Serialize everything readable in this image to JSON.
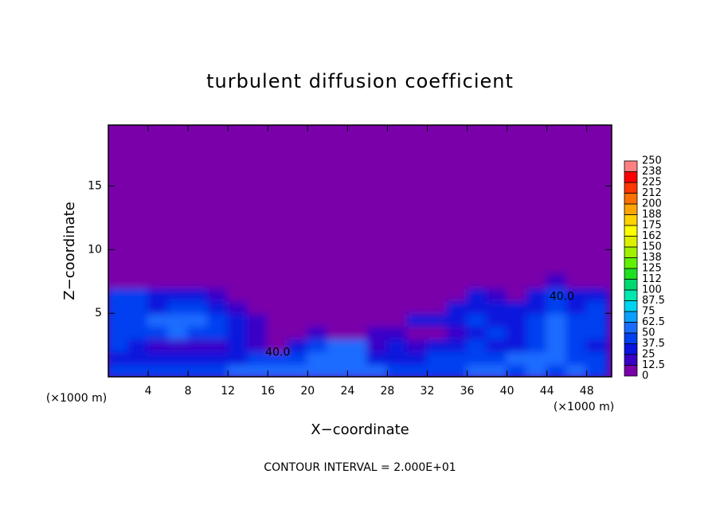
{
  "chart_data": {
    "type": "heatmap",
    "title": "turbulent diffusion coefficient",
    "x_label": "X−coordinate",
    "y_label": "Z−coordinate",
    "x_unit": "(×1000 m)",
    "x_unit_right": "(×1000 m)",
    "footnote": "CONTOUR INTERVAL = 2.000E+01",
    "annotations": [
      {
        "text": "40.0",
        "x": 17,
        "z": 1.9
      },
      {
        "text": "40.0",
        "x": 45.5,
        "z": 6.3
      }
    ],
    "xlim": [
      0,
      50.5
    ],
    "ylim": [
      0,
      19.8
    ],
    "xticks": [
      4,
      8,
      12,
      16,
      20,
      24,
      28,
      32,
      36,
      40,
      44,
      48
    ],
    "yticks": [
      5,
      10,
      15
    ],
    "x": [
      1,
      3,
      5,
      7,
      9,
      11,
      13,
      15,
      17,
      19,
      21,
      23,
      25,
      27,
      29,
      31,
      33,
      35,
      37,
      39,
      41,
      43,
      45,
      47,
      49
    ],
    "z": [
      0.5,
      1.5,
      2.5,
      3.5,
      4.5,
      5.5,
      6.5,
      7.5
    ],
    "values": [
      [
        40,
        40,
        45,
        45,
        45,
        45,
        50,
        55,
        50,
        55,
        55,
        60,
        55,
        50,
        45,
        45,
        40,
        45,
        50,
        50,
        45,
        50,
        45,
        50,
        45
      ],
      [
        35,
        30,
        30,
        30,
        25,
        25,
        30,
        45,
        40,
        45,
        55,
        60,
        60,
        35,
        30,
        35,
        40,
        45,
        40,
        45,
        50,
        55,
        50,
        45,
        40
      ],
      [
        40,
        25,
        15,
        20,
        20,
        20,
        25,
        15,
        10,
        30,
        40,
        55,
        50,
        20,
        30,
        20,
        30,
        35,
        40,
        30,
        30,
        40,
        55,
        40,
        35
      ],
      [
        40,
        40,
        45,
        50,
        45,
        40,
        35,
        20,
        10,
        10,
        15,
        10,
        10,
        15,
        20,
        10,
        10,
        20,
        35,
        40,
        35,
        40,
        55,
        40,
        40
      ],
      [
        40,
        45,
        50,
        55,
        50,
        45,
        35,
        15,
        5,
        5,
        5,
        5,
        5,
        5,
        10,
        25,
        30,
        35,
        40,
        35,
        35,
        40,
        50,
        40,
        40
      ],
      [
        45,
        40,
        35,
        45,
        40,
        30,
        20,
        10,
        5,
        5,
        5,
        5,
        5,
        5,
        5,
        5,
        10,
        30,
        35,
        30,
        30,
        35,
        45,
        35,
        40
      ],
      [
        40,
        45,
        35,
        30,
        25,
        15,
        5,
        5,
        5,
        5,
        5,
        5,
        5,
        5,
        5,
        5,
        5,
        10,
        25,
        20,
        5,
        25,
        40,
        30,
        35
      ],
      [
        5,
        5,
        5,
        5,
        5,
        5,
        5,
        5,
        5,
        5,
        5,
        5,
        5,
        5,
        5,
        5,
        5,
        5,
        5,
        5,
        5,
        5,
        15,
        5,
        5
      ]
    ],
    "colorbar_ticks": [
      0,
      12.5,
      25,
      37.5,
      50,
      62.5,
      75,
      87.5,
      100,
      112,
      125,
      138,
      150,
      162,
      175,
      188,
      200,
      212,
      225,
      238,
      250
    ],
    "colors": [
      "#7a00aa",
      "#3a00c8",
      "#0a14dc",
      "#0040f0",
      "#1a6cff",
      "#0aa0ff",
      "#00d4f0",
      "#00e8b0",
      "#00d870",
      "#20e020",
      "#60f000",
      "#a0f000",
      "#dcf000",
      "#ffff00",
      "#ffd200",
      "#ffa400",
      "#ff7000",
      "#ff3800",
      "#ff0000",
      "#ff8080"
    ],
    "background": "#7a00aa"
  }
}
